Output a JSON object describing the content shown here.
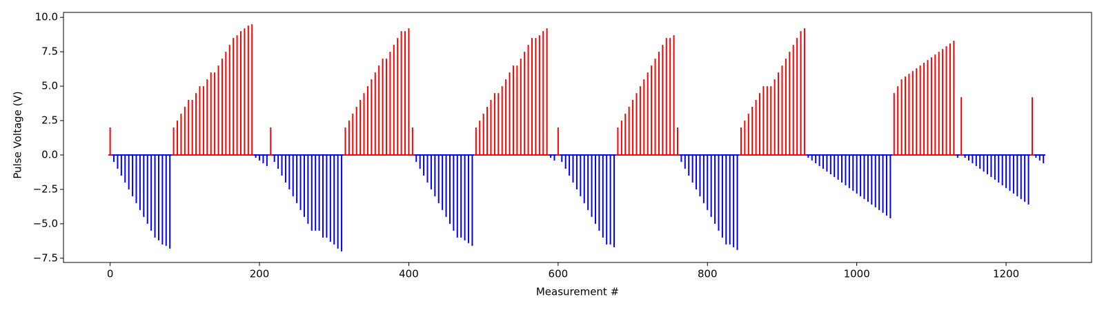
{
  "chart_data": {
    "type": "pulse",
    "xlabel": "Measurement #",
    "ylabel": "Pulse Voltage (V)",
    "colors": {
      "positive": "#ff0000",
      "negative": "#0000ff"
    },
    "xlim": [
      -62.5,
      1314.5
    ],
    "ylim": [
      -7.81,
      10.36
    ],
    "xticks": [
      0,
      200,
      400,
      600,
      800,
      1000,
      1200
    ],
    "yticks": [
      {
        "value": -7.5,
        "label": "−7.5"
      },
      {
        "value": -5,
        "label": "−5.0"
      },
      {
        "value": -2.5,
        "label": "−2.5"
      },
      {
        "value": 0,
        "label": "0.0"
      },
      {
        "value": 2.5,
        "label": "2.5"
      },
      {
        "value": 5,
        "label": "5.0"
      },
      {
        "value": 7.5,
        "label": "7.5"
      },
      {
        "value": 10,
        "label": "10.0"
      }
    ],
    "x": [
      0,
      5,
      10,
      15,
      20,
      25,
      30,
      35,
      40,
      45,
      50,
      55,
      60,
      65,
      70,
      75,
      80,
      85,
      90,
      95,
      100,
      105,
      110,
      115,
      120,
      125,
      130,
      135,
      140,
      145,
      150,
      155,
      160,
      165,
      170,
      175,
      180,
      185,
      190,
      195,
      200,
      205,
      210,
      215,
      220,
      225,
      230,
      235,
      240,
      245,
      250,
      255,
      260,
      265,
      270,
      275,
      280,
      285,
      290,
      295,
      300,
      305,
      310,
      315,
      320,
      325,
      330,
      335,
      340,
      345,
      350,
      355,
      360,
      365,
      370,
      375,
      380,
      385,
      390,
      395,
      400,
      405,
      410,
      415,
      420,
      425,
      430,
      435,
      440,
      445,
      450,
      455,
      460,
      465,
      470,
      475,
      480,
      485,
      490,
      495,
      500,
      505,
      510,
      515,
      520,
      525,
      530,
      535,
      540,
      545,
      550,
      555,
      560,
      565,
      570,
      575,
      580,
      585,
      590,
      595,
      600,
      605,
      610,
      615,
      620,
      625,
      630,
      635,
      640,
      645,
      650,
      655,
      660,
      665,
      670,
      675,
      680,
      685,
      690,
      695,
      700,
      705,
      710,
      715,
      720,
      725,
      730,
      735,
      740,
      745,
      750,
      755,
      760,
      765,
      770,
      775,
      780,
      785,
      790,
      795,
      800,
      805,
      810,
      815,
      820,
      825,
      830,
      835,
      840,
      845,
      850,
      855,
      860,
      865,
      870,
      875,
      880,
      885,
      890,
      895,
      900,
      905,
      910,
      915,
      920,
      925,
      930,
      935,
      940,
      945,
      950,
      955,
      960,
      965,
      970,
      975,
      980,
      985,
      990,
      995,
      1000,
      1005,
      1010,
      1015,
      1020,
      1025,
      1030,
      1035,
      1040,
      1045,
      1050,
      1055,
      1060,
      1065,
      1070,
      1075,
      1080,
      1085,
      1090,
      1095,
      1100,
      1105,
      1110,
      1115,
      1120,
      1125,
      1130,
      1135,
      1140,
      1145,
      1150,
      1155,
      1160,
      1165,
      1170,
      1175,
      1180,
      1185,
      1190,
      1195,
      1200,
      1205,
      1210,
      1215,
      1220,
      1225,
      1230,
      1235,
      1240,
      1245,
      1250
    ],
    "values": [
      2,
      -0.5,
      -1,
      -1.5,
      -2,
      -2.5,
      -3,
      -3.5,
      -4,
      -4.5,
      -5,
      -5.5,
      -6,
      -6.2,
      -6.5,
      -6.6,
      -6.8,
      2,
      2.5,
      3,
      3.5,
      4,
      4,
      4.5,
      5,
      5,
      5.5,
      6,
      6,
      6.5,
      7,
      7.5,
      8,
      8.5,
      8.7,
      9,
      9.2,
      9.4,
      9.5,
      -0.2,
      -0.4,
      -0.6,
      -0.8,
      2,
      -0.5,
      -1,
      -1.5,
      -2,
      -2.5,
      -3,
      -3.5,
      -4,
      -4.5,
      -5,
      -5.5,
      -5.5,
      -5.5,
      -6,
      -6,
      -6.3,
      -6.5,
      -6.8,
      -7,
      2,
      2.5,
      3,
      3.5,
      4,
      4.5,
      5,
      5.5,
      6,
      6.5,
      7,
      7,
      7.5,
      8,
      8.5,
      9,
      9,
      9.2,
      2,
      -0.5,
      -1,
      -1.5,
      -2,
      -2.5,
      -3,
      -3.5,
      -4,
      -4.5,
      -5,
      -5.5,
      -6,
      -6,
      -6.2,
      -6.4,
      -6.6,
      2,
      2.5,
      3,
      3.5,
      4,
      4.5,
      4.5,
      5,
      5.5,
      6,
      6.5,
      6.5,
      7,
      7.5,
      8,
      8.5,
      8.5,
      8.7,
      9,
      9.2,
      -0.2,
      -0.4,
      2,
      -0.5,
      -1,
      -1.5,
      -2,
      -2.5,
      -3,
      -3.5,
      -4,
      -4.5,
      -5,
      -5.5,
      -6,
      -6.5,
      -6.5,
      -6.7,
      2,
      2.5,
      3,
      3.5,
      4,
      4.5,
      5,
      5.5,
      6,
      6.5,
      7,
      7.5,
      8,
      8.5,
      8.5,
      8.7,
      2,
      -0.5,
      -1,
      -1.5,
      -2,
      -2.5,
      -3,
      -3.5,
      -4,
      -4.5,
      -5,
      -5.5,
      -6,
      -6.5,
      -6.5,
      -6.7,
      -6.9,
      2,
      2.5,
      3,
      3.5,
      4,
      4.5,
      5,
      5,
      5,
      5.5,
      6,
      6.5,
      7,
      7.5,
      8,
      8.5,
      9,
      9.2,
      -0.2,
      -0.4,
      -0.6,
      -0.8,
      -1,
      -1.2,
      -1.4,
      -1.6,
      -1.8,
      -2,
      -2.2,
      -2.4,
      -2.6,
      -2.8,
      -3,
      -3.2,
      -3.4,
      -3.6,
      -3.8,
      -4,
      -4.2,
      -4.4,
      -4.6,
      4.5,
      5,
      5.5,
      5.7,
      5.9,
      6.1,
      6.3,
      6.5,
      6.7,
      6.9,
      7.1,
      7.3,
      7.5,
      7.7,
      7.9,
      8.1,
      8.3,
      -0.2,
      4.2,
      -0.2,
      -0.4,
      -0.6,
      -0.8,
      -1,
      -1.2,
      -1.4,
      -1.6,
      -1.8,
      -2,
      -2.2,
      -2.4,
      -2.6,
      -2.8,
      -3,
      -3.2,
      -3.4,
      -3.6,
      4.2,
      -0.2,
      -0.4,
      -0.6
    ]
  }
}
